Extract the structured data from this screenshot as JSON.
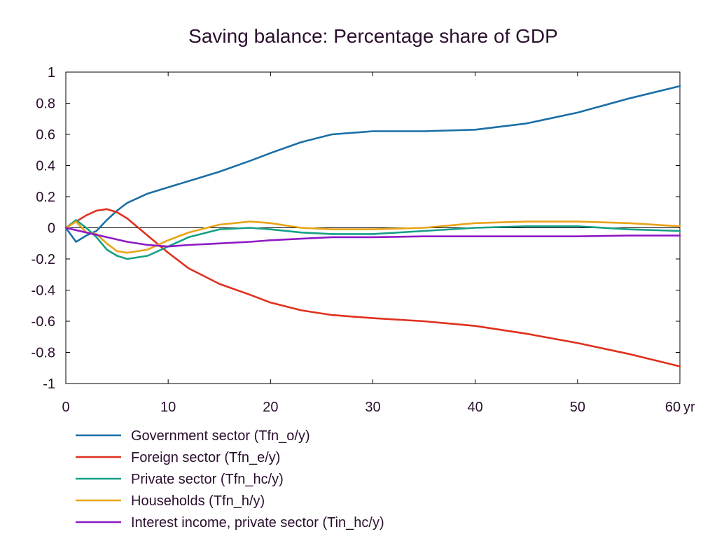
{
  "chart_data": {
    "type": "line",
    "title": "Saving balance: Percentage share of GDP",
    "xlabel": "",
    "ylabel": "",
    "x_unit_label": "yr",
    "xlim": [
      0,
      60
    ],
    "ylim": [
      -1,
      1
    ],
    "x_ticks": [
      0,
      10,
      20,
      30,
      40,
      50,
      60
    ],
    "x_tick_labels": [
      "0",
      "10",
      "20",
      "30",
      "40",
      "50",
      "60"
    ],
    "y_ticks": [
      1,
      0.8,
      0.6,
      0.4,
      0.2,
      0,
      -0.2,
      -0.4,
      -0.6,
      -0.8,
      -1
    ],
    "y_tick_labels": [
      "1",
      "0.8",
      "0.6",
      "0.4",
      "0.2",
      "0",
      "-0.2",
      "-0.4",
      "-0.6",
      "-0.8",
      "-1"
    ],
    "zero_line": true,
    "grid": false,
    "legend_position": "bottom",
    "series": [
      {
        "name": "Government sector (Tfn_o/y)",
        "color": "#1a6fa6",
        "x": [
          0,
          1,
          2,
          3,
          4,
          5,
          6,
          8,
          10,
          12,
          15,
          18,
          20,
          23,
          26,
          30,
          35,
          40,
          45,
          50,
          55,
          60
        ],
        "y": [
          0,
          -0.09,
          -0.05,
          -0.02,
          0.05,
          0.11,
          0.16,
          0.22,
          0.26,
          0.3,
          0.36,
          0.43,
          0.48,
          0.55,
          0.6,
          0.62,
          0.62,
          0.63,
          0.67,
          0.74,
          0.83,
          0.91
        ]
      },
      {
        "name": "Foreign sector (Tfn_e/y)",
        "color": "#e0301e",
        "x": [
          0,
          1,
          2,
          3,
          4,
          5,
          6,
          8,
          10,
          12,
          15,
          18,
          20,
          23,
          26,
          30,
          35,
          40,
          45,
          50,
          55,
          60
        ],
        "y": [
          0,
          0.04,
          0.08,
          0.11,
          0.12,
          0.1,
          0.06,
          -0.05,
          -0.16,
          -0.26,
          -0.36,
          -0.43,
          -0.48,
          -0.53,
          -0.56,
          -0.58,
          -0.6,
          -0.63,
          -0.68,
          -0.74,
          -0.81,
          -0.89
        ]
      },
      {
        "name": "Private sector (Tfn_hc/y)",
        "color": "#16a085",
        "x": [
          0,
          1,
          2,
          3,
          4,
          5,
          6,
          8,
          10,
          12,
          15,
          18,
          20,
          23,
          26,
          30,
          35,
          40,
          45,
          50,
          55,
          60
        ],
        "y": [
          0,
          0.05,
          0.0,
          -0.06,
          -0.14,
          -0.18,
          -0.2,
          -0.18,
          -0.12,
          -0.06,
          -0.01,
          0.0,
          -0.01,
          -0.03,
          -0.04,
          -0.04,
          -0.02,
          0.0,
          0.01,
          0.01,
          -0.01,
          -0.02
        ]
      },
      {
        "name": "Households (Tfn_h/y)",
        "color": "#e8a317",
        "x": [
          0,
          1,
          2,
          3,
          4,
          5,
          6,
          8,
          10,
          12,
          15,
          18,
          20,
          23,
          26,
          30,
          35,
          40,
          45,
          50,
          55,
          60
        ],
        "y": [
          0,
          0.04,
          -0.03,
          -0.04,
          -0.1,
          -0.15,
          -0.16,
          -0.14,
          -0.08,
          -0.03,
          0.02,
          0.04,
          0.03,
          0.0,
          -0.01,
          -0.01,
          0.0,
          0.03,
          0.04,
          0.04,
          0.03,
          0.01
        ]
      },
      {
        "name": "Interest income, private sector (Tin_hc/y)",
        "color": "#8e19c4",
        "x": [
          0,
          2,
          4,
          6,
          8,
          10,
          12,
          15,
          18,
          20,
          23,
          26,
          30,
          35,
          40,
          45,
          50,
          55,
          60
        ],
        "y": [
          0,
          -0.03,
          -0.06,
          -0.09,
          -0.11,
          -0.12,
          -0.11,
          -0.1,
          -0.09,
          -0.08,
          -0.07,
          -0.06,
          -0.06,
          -0.055,
          -0.055,
          -0.055,
          -0.055,
          -0.05,
          -0.05
        ]
      }
    ]
  }
}
